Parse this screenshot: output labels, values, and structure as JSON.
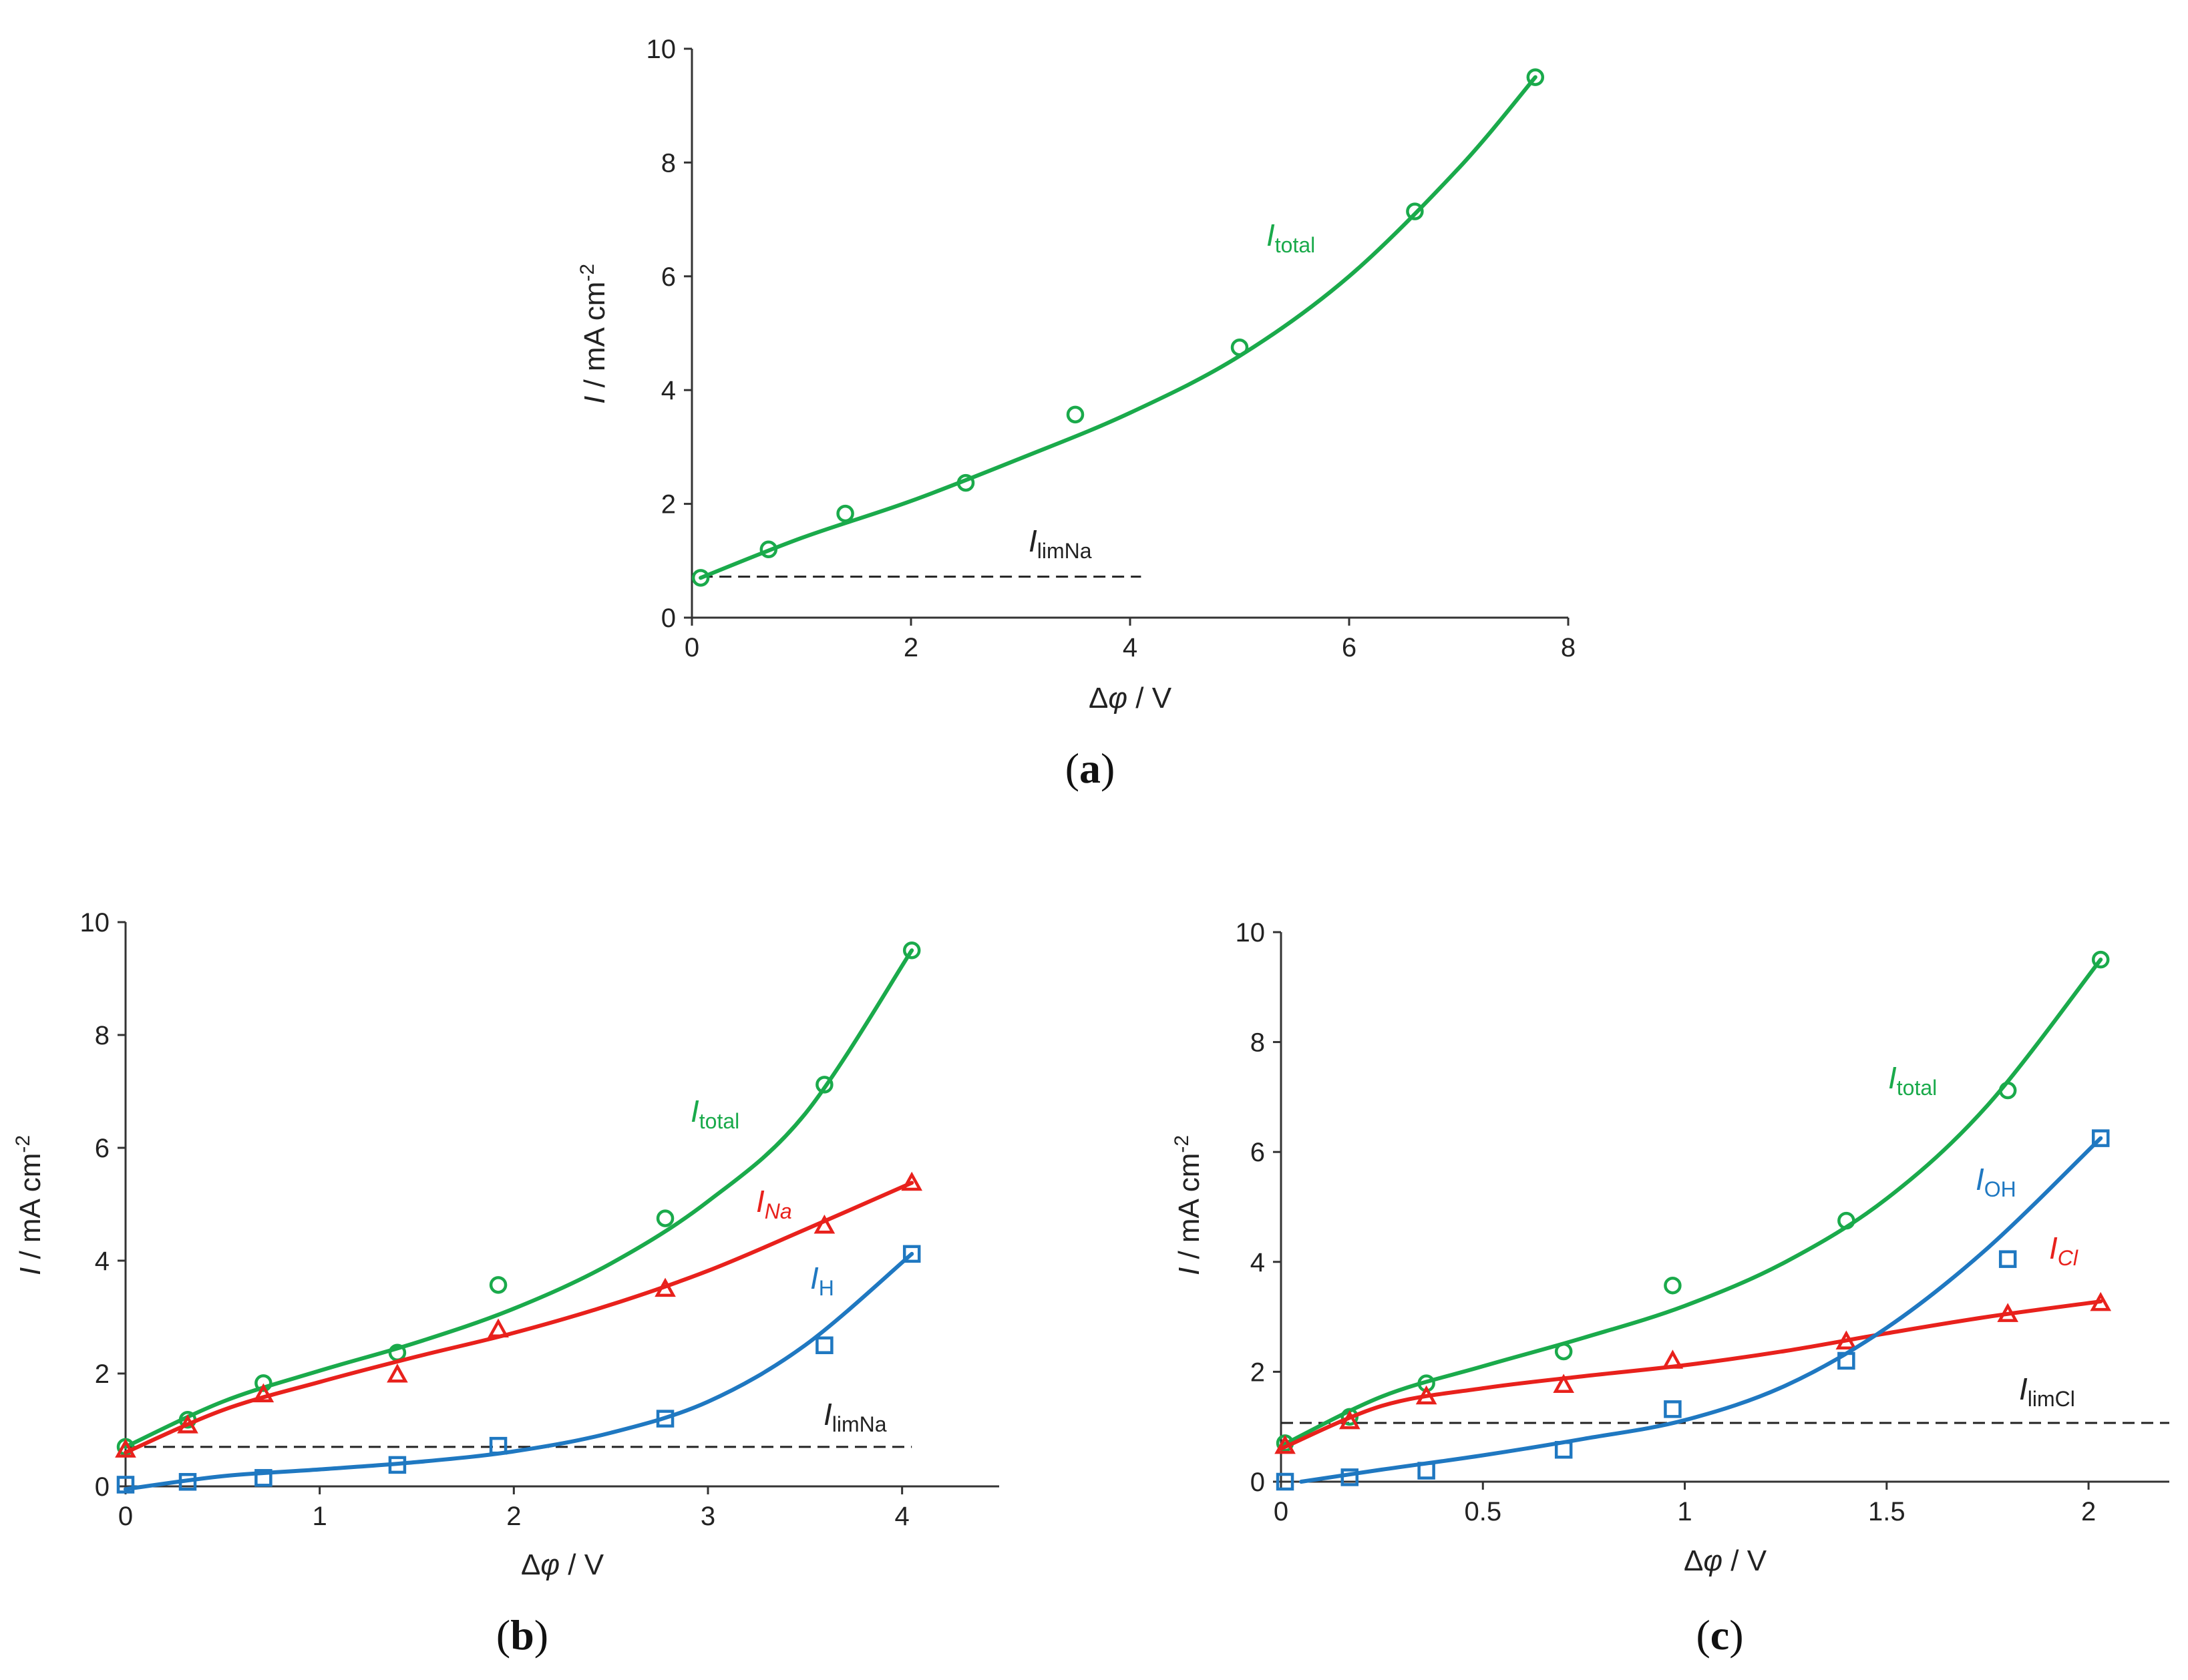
{
  "chart_data": [
    {
      "type": "line",
      "panel": "a",
      "title": "",
      "xlabel": "Δφ / V",
      "ylabel": "I / mA cm-2",
      "xlim": [
        0,
        8
      ],
      "ylim": [
        0,
        10
      ],
      "xticks": [
        "0",
        "2",
        "4",
        "6",
        "8"
      ],
      "yticks": [
        "0",
        "2",
        "4",
        "6",
        "8",
        "10"
      ],
      "series": [
        {
          "name": "Itotal",
          "color": "#1aaa4b",
          "marker": "circle",
          "label_main": "I",
          "label_sub": "total",
          "x": [
            0.08,
            0.7,
            1.4,
            2.5,
            3.5,
            5.0,
            6.6,
            7.7
          ],
          "y": [
            0.7,
            1.2,
            1.83,
            2.37,
            3.57,
            4.75,
            7.14,
            9.5
          ],
          "curve": [
            [
              0.08,
              0.7
            ],
            [
              1,
              1.4
            ],
            [
              2,
              2.05
            ],
            [
              3,
              2.8
            ],
            [
              4,
              3.6
            ],
            [
              5,
              4.6
            ],
            [
              6,
              6.0
            ],
            [
              7,
              7.9
            ],
            [
              7.7,
              9.5
            ]
          ]
        }
      ],
      "hlines": [
        {
          "name": "IlimNa",
          "y": 0.72,
          "x_from": 0.08,
          "x_to": 4.1,
          "label_main": "I",
          "label_sub": "limNa",
          "color": "#222222"
        }
      ],
      "panel_label": "a"
    },
    {
      "type": "line",
      "panel": "b",
      "title": "",
      "xlabel": "Δφ / V",
      "ylabel": "I / mA cm-2",
      "xlim": [
        0,
        4.5
      ],
      "ylim": [
        0,
        10
      ],
      "xticks": [
        "0",
        "1",
        "2",
        "3",
        "4"
      ],
      "yticks": [
        "0",
        "2",
        "4",
        "6",
        "8",
        "10"
      ],
      "series": [
        {
          "name": "Itotal",
          "color": "#1aaa4b",
          "marker": "circle",
          "label_main": "I",
          "label_sub": "total",
          "x": [
            0.0,
            0.32,
            0.71,
            1.4,
            1.92,
            2.78,
            3.6,
            4.05
          ],
          "y": [
            0.7,
            1.18,
            1.83,
            2.37,
            3.57,
            4.75,
            7.12,
            9.5
          ],
          "curve": [
            [
              0.0,
              0.7
            ],
            [
              0.5,
              1.5
            ],
            [
              1,
              2.05
            ],
            [
              1.5,
              2.55
            ],
            [
              2,
              3.15
            ],
            [
              2.5,
              3.95
            ],
            [
              3,
              5.05
            ],
            [
              3.5,
              6.6
            ],
            [
              4.05,
              9.5
            ]
          ]
        },
        {
          "name": "INa",
          "color": "#e8211c",
          "marker": "triangle",
          "label_main": "I",
          "label_sub": "Na",
          "sub_italic": true,
          "x": [
            0.0,
            0.32,
            0.71,
            1.4,
            1.92,
            2.78,
            3.6,
            4.05
          ],
          "y": [
            0.65,
            1.08,
            1.63,
            1.98,
            2.78,
            3.5,
            4.62,
            5.38
          ],
          "curve": [
            [
              0.0,
              0.6
            ],
            [
              0.5,
              1.35
            ],
            [
              1,
              1.85
            ],
            [
              1.5,
              2.3
            ],
            [
              2,
              2.72
            ],
            [
              2.5,
              3.22
            ],
            [
              3,
              3.82
            ],
            [
              3.5,
              4.55
            ],
            [
              4.05,
              5.38
            ]
          ]
        },
        {
          "name": "IH",
          "color": "#1f78c1",
          "marker": "square",
          "label_main": "I",
          "label_sub": "H",
          "x": [
            0.0,
            0.32,
            0.71,
            1.4,
            1.92,
            2.78,
            3.6,
            4.05
          ],
          "y": [
            0.03,
            0.08,
            0.15,
            0.38,
            0.72,
            1.2,
            2.5,
            4.12
          ],
          "curve": [
            [
              0.0,
              -0.05
            ],
            [
              0.5,
              0.18
            ],
            [
              1,
              0.3
            ],
            [
              1.5,
              0.43
            ],
            [
              2,
              0.62
            ],
            [
              2.5,
              0.95
            ],
            [
              3,
              1.5
            ],
            [
              3.5,
              2.5
            ],
            [
              4.05,
              4.12
            ]
          ]
        }
      ],
      "hlines": [
        {
          "name": "IlimNa",
          "y": 0.7,
          "x_from": 0.0,
          "x_to": 4.05,
          "label_main": "I",
          "label_sub": "limNa",
          "color": "#222222"
        }
      ],
      "panel_label": "b"
    },
    {
      "type": "line",
      "panel": "c",
      "title": "",
      "xlabel": "Δφ / V",
      "ylabel": "I / mA cm-2",
      "xlim": [
        0,
        2.2
      ],
      "ylim": [
        0,
        10
      ],
      "xticks": [
        "0",
        "0.5",
        "1",
        "1.5",
        "2"
      ],
      "yticks": [
        "0",
        "2",
        "4",
        "6",
        "8",
        "10"
      ],
      "series": [
        {
          "name": "Itotal",
          "color": "#1aaa4b",
          "marker": "circle",
          "label_main": "I",
          "label_sub": "total",
          "x": [
            0.01,
            0.17,
            0.36,
            0.7,
            0.97,
            1.4,
            1.8,
            2.03
          ],
          "y": [
            0.7,
            1.18,
            1.79,
            2.37,
            3.57,
            4.75,
            7.12,
            9.5
          ],
          "curve": [
            [
              0.0,
              0.65
            ],
            [
              0.25,
              1.55
            ],
            [
              0.5,
              2.1
            ],
            [
              0.75,
              2.62
            ],
            [
              1,
              3.2
            ],
            [
              1.25,
              4.0
            ],
            [
              1.5,
              5.15
            ],
            [
              1.75,
              6.85
            ],
            [
              2.03,
              9.5
            ]
          ]
        },
        {
          "name": "ICl",
          "color": "#e8211c",
          "marker": "triangle",
          "label_main": "I",
          "label_sub": "Cl",
          "sub_italic": true,
          "x": [
            0.01,
            0.17,
            0.36,
            0.7,
            0.97,
            1.4,
            1.8,
            2.03
          ],
          "y": [
            0.65,
            1.1,
            1.55,
            1.76,
            2.2,
            2.55,
            3.05,
            3.25
          ],
          "curve": [
            [
              0.0,
              0.6
            ],
            [
              0.25,
              1.38
            ],
            [
              0.5,
              1.7
            ],
            [
              0.75,
              1.92
            ],
            [
              1,
              2.12
            ],
            [
              1.25,
              2.38
            ],
            [
              1.5,
              2.7
            ],
            [
              1.75,
              3.0
            ],
            [
              2.03,
              3.28
            ]
          ]
        },
        {
          "name": "IOH",
          "color": "#1f78c1",
          "marker": "square",
          "label_main": "I",
          "label_sub": "OH",
          "x": [
            0.01,
            0.17,
            0.36,
            0.7,
            0.97,
            1.4,
            1.8,
            2.03
          ],
          "y": [
            0.0,
            0.08,
            0.2,
            0.58,
            1.32,
            2.2,
            4.05,
            6.25
          ],
          "curve": [
            [
              0.05,
              0.0
            ],
            [
              0.25,
              0.22
            ],
            [
              0.5,
              0.48
            ],
            [
              0.75,
              0.78
            ],
            [
              1,
              1.12
            ],
            [
              1.25,
              1.75
            ],
            [
              1.5,
              2.8
            ],
            [
              1.75,
              4.25
            ],
            [
              2.03,
              6.25
            ]
          ]
        }
      ],
      "hlines": [
        {
          "name": "IlimCl",
          "y": 1.07,
          "x_from": 0.0,
          "x_to": 2.2,
          "label_main": "I",
          "label_sub": "limCl",
          "color": "#222222"
        }
      ],
      "panel_label": "c"
    }
  ]
}
